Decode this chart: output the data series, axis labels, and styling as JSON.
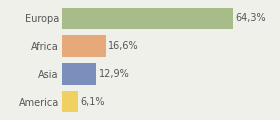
{
  "categories": [
    "Europa",
    "Africa",
    "Asia",
    "America"
  ],
  "values": [
    64.3,
    16.6,
    12.9,
    6.1
  ],
  "labels": [
    "64,3%",
    "16,6%",
    "12,9%",
    "6,1%"
  ],
  "colors": [
    "#a8bc8a",
    "#e8a97a",
    "#7b8fbc",
    "#f0d060"
  ],
  "background_color": "#f0f0eb",
  "xlim": [
    0,
    80
  ],
  "bar_height": 0.78,
  "label_fontsize": 7.0,
  "tick_fontsize": 7.0
}
